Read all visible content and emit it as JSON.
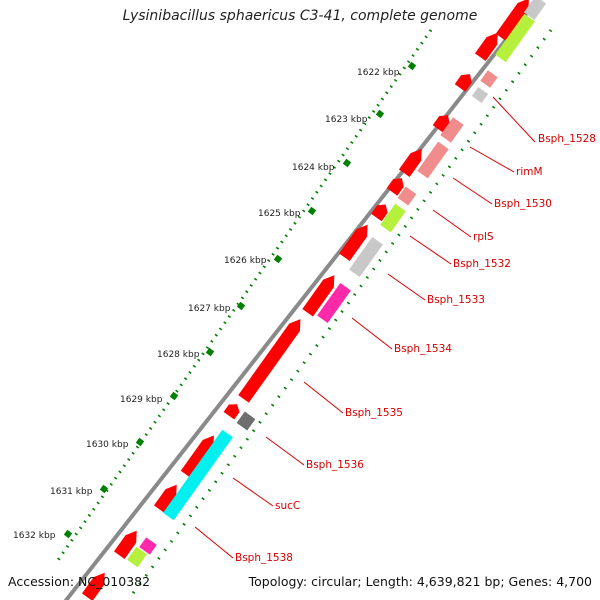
{
  "header": {
    "title": "Lysinibacillus sphaericus C3-41, complete genome"
  },
  "footer": {
    "accession": "Accession: NC_010382",
    "topology": "Topology: circular; Length: 4,639,821 bp; Genes: 4,700"
  },
  "colors": {
    "cds": "#ff0000",
    "cds_light": "#f08c8c",
    "rrna": "#c8c8c8",
    "dark": "#6e6e6e",
    "tick": "#008000",
    "green": "#b4f03c",
    "magenta": "#ff2aaa",
    "cyan": "#00f0f0",
    "label": "#d40000"
  },
  "kbp_labels": [
    "1622 kbp",
    "1623 kbp",
    "1624 kbp",
    "1625 kbp",
    "1626 kbp",
    "1627 kbp",
    "1628 kbp",
    "1629 kbp",
    "1630 kbp",
    "1631 kbp",
    "1632 kbp"
  ],
  "gene_labels": [
    "Bsph_1528",
    "rimM",
    "Bsph_1530",
    "rplS",
    "Bsph_1532",
    "Bsph_1533",
    "Bsph_1534",
    "Bsph_1535",
    "Bsph_1536",
    "sucC",
    "Bsph_1538"
  ]
}
